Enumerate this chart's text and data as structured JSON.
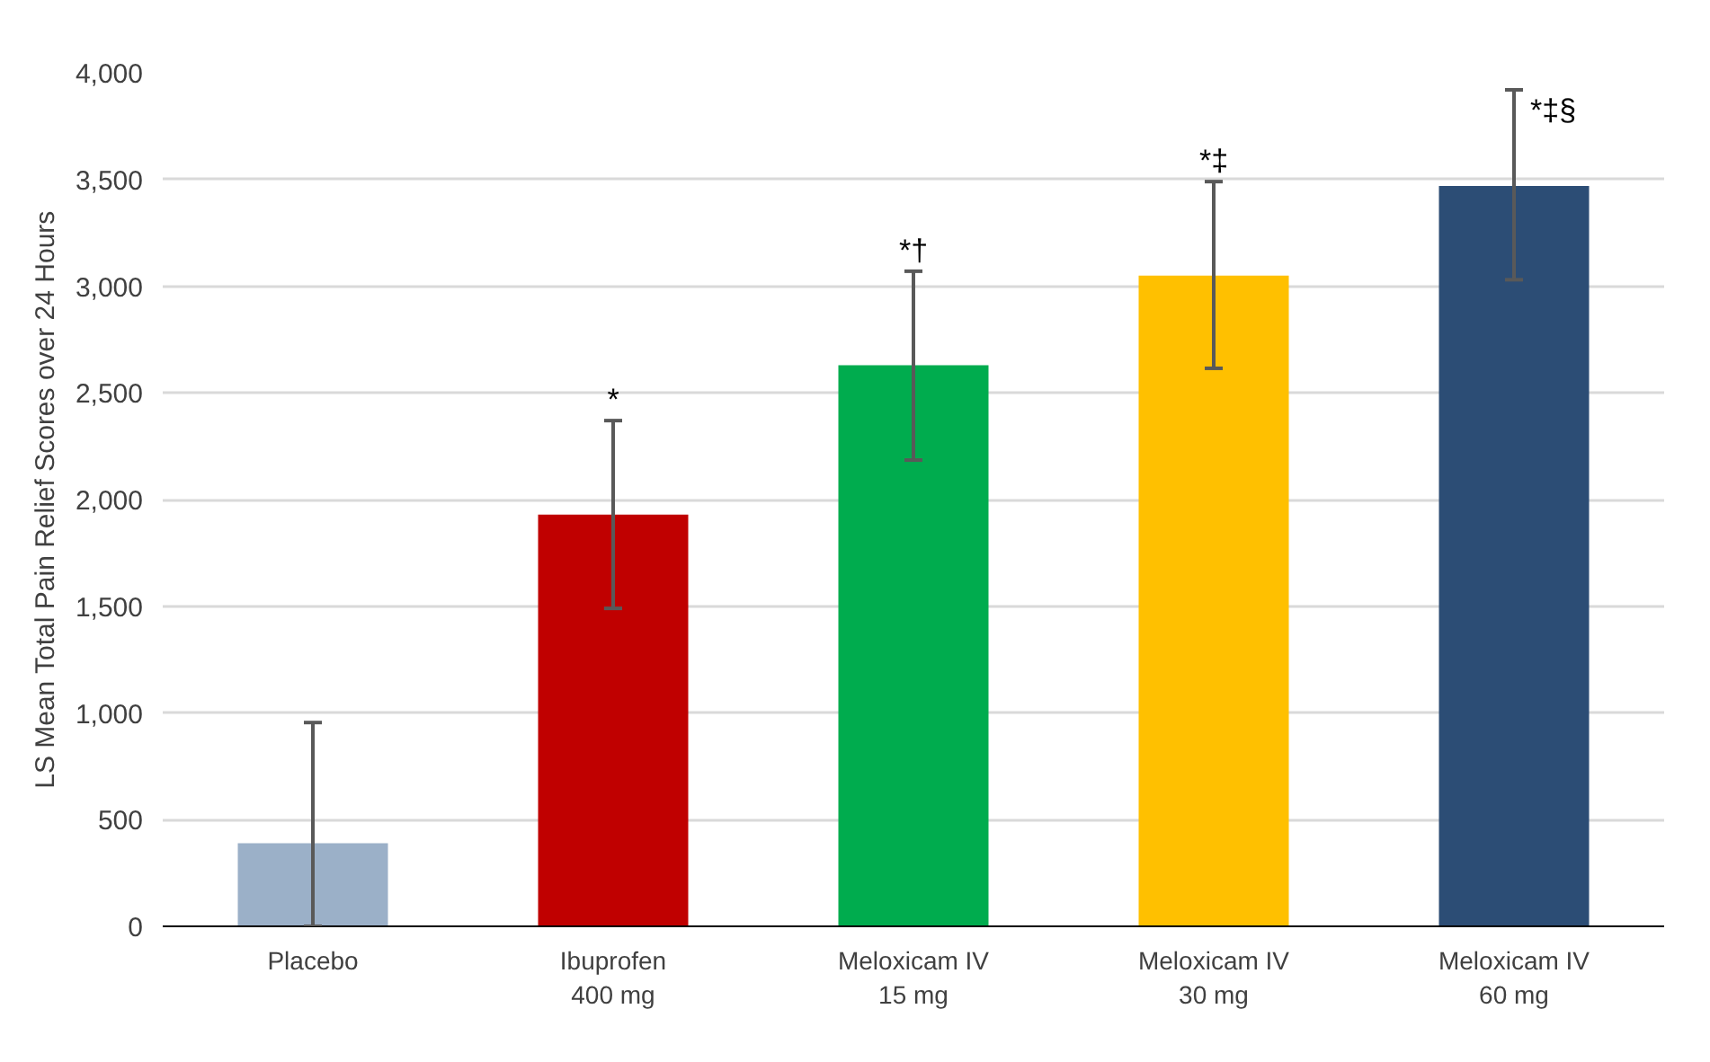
{
  "chart_data": {
    "type": "bar",
    "ylabel": "LS Mean Total Pain Relief Scores over 24 Hours",
    "categories": [
      "Placebo",
      "Ibuprofen\n400 mg",
      "Meloxicam IV\n15 mg",
      "Meloxicam IV\n30 mg",
      "Meloxicam IV\n60 mg"
    ],
    "values": [
      390,
      1930,
      2630,
      3050,
      3470
    ],
    "colors": [
      "#9bb0c8",
      "#c00000",
      "#00ac4e",
      "#ffc000",
      "#2c4d75"
    ],
    "errors": [
      [
        0,
        955
      ],
      [
        1490,
        2370
      ],
      [
        2185,
        3070
      ],
      [
        2615,
        3490
      ],
      [
        3030,
        3920
      ]
    ],
    "ylim": [
      0,
      4000
    ],
    "yticks": [
      0,
      {
        "value": 500,
        "label": "500"
      },
      {
        "value": 1000,
        "label": "1,000"
      },
      {
        "value": 1500,
        "label": "1,500"
      },
      {
        "value": 2000,
        "label": "2,000"
      },
      {
        "value": 2500,
        "label": "2,500"
      },
      {
        "value": 3000,
        "label": "3,000"
      },
      {
        "value": 3500,
        "label": "3,500"
      },
      {
        "value": 4000,
        "label": "4,000"
      }
    ],
    "grid": "y",
    "annotations": [
      {
        "text": "*",
        "x": "Ibuprofen\n400 mg",
        "y": 2370
      },
      {
        "text": "*†",
        "x": "Meloxicam IV\n15 mg",
        "y": 3070
      },
      {
        "text": "*‡",
        "x": "Meloxicam IV\n30 mg",
        "y": 3490
      },
      {
        "text": "*‡§",
        "x": "Meloxicam IV\n60 mg",
        "y": 3920
      }
    ]
  }
}
